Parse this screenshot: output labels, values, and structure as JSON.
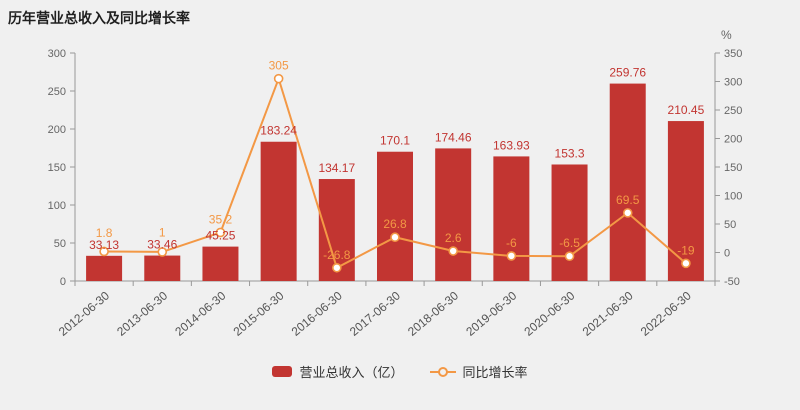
{
  "title": "历年营业总收入及同比增长率",
  "colors": {
    "background": "#f0f0f0",
    "bar": "#c23531",
    "line": "#f39845",
    "axis": "#999999",
    "tick_text": "#666666",
    "category_text": "#555555"
  },
  "legend": [
    {
      "label": "营业总收入（亿）",
      "type": "bar"
    },
    {
      "label": "同比增长率",
      "type": "line"
    }
  ],
  "chart_data": {
    "type": "bar+line combo",
    "title": "历年营业总收入及同比增长率",
    "categories": [
      "2012-06-30",
      "2013-06-30",
      "2014-06-30",
      "2015-06-30",
      "2016-06-30",
      "2017-06-30",
      "2018-06-30",
      "2019-06-30",
      "2020-06-30",
      "2021-06-30",
      "2022-06-30"
    ],
    "series": [
      {
        "name": "营业总收入（亿）",
        "type": "bar",
        "axis": "left",
        "values": [
          33.13,
          33.46,
          45.25,
          183.24,
          134.17,
          170.1,
          174.46,
          163.93,
          153.3,
          259.76,
          210.45
        ],
        "labels": [
          "33.13",
          "33.46",
          "45.25",
          "183.24",
          "134.17",
          "170.1",
          "174.46",
          "163.93",
          "153.3",
          "259.76",
          "210.45"
        ]
      },
      {
        "name": "同比增长率",
        "type": "line",
        "axis": "right",
        "values": [
          1.8,
          1,
          35.2,
          305,
          -26.8,
          26.8,
          2.6,
          -6,
          -6.5,
          69.5,
          -19
        ],
        "labels": [
          "1.8",
          "1",
          "35.2",
          "305",
          "-26.8",
          "26.8",
          "2.6",
          "-6",
          "-6.5",
          "69.5",
          "-19"
        ]
      }
    ],
    "left_axis": {
      "min": 0,
      "max": 300,
      "step": 50
    },
    "right_axis": {
      "min": -50,
      "max": 350,
      "step": 50,
      "unit": "%"
    },
    "grid": false,
    "legend_position": "bottom"
  }
}
